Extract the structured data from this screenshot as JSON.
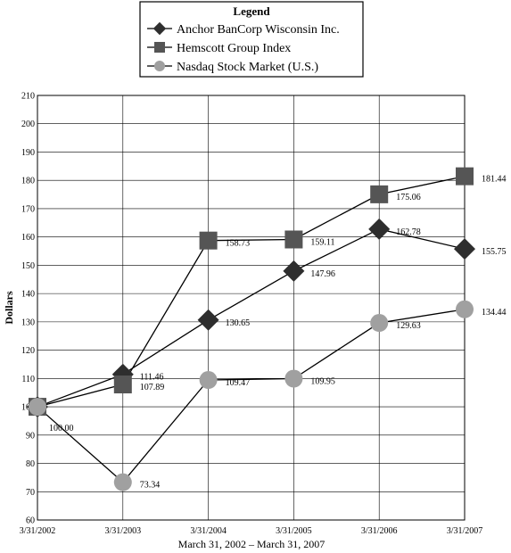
{
  "chart_data": {
    "type": "line",
    "legend_title": "Legend",
    "legend_position": "top-center",
    "x": [
      "3/31/2002",
      "3/31/2003",
      "3/31/2004",
      "3/31/2005",
      "3/31/2006",
      "3/31/2007"
    ],
    "xlabel": "March 31, 2002 – March 31, 2007",
    "ylabel": "Dollars",
    "ylim": [
      60,
      210
    ],
    "yticks": [
      60,
      70,
      80,
      90,
      100,
      110,
      120,
      130,
      140,
      150,
      160,
      170,
      180,
      190,
      200,
      210
    ],
    "grid": true,
    "series": [
      {
        "name": "Anchor BanCorp Wisconsin Inc.",
        "marker": "diamond",
        "color": "#2e2e2e",
        "values": [
          100.0,
          111.46,
          130.65,
          147.96,
          162.78,
          155.75
        ],
        "labels": [
          "",
          "111.46",
          "130.65",
          "147.96",
          "162.78",
          "155.75"
        ]
      },
      {
        "name": "Hemscott Group Index",
        "marker": "square",
        "color": "#555555",
        "values": [
          100.0,
          107.89,
          158.73,
          159.11,
          175.06,
          181.44
        ],
        "labels": [
          "",
          "107.89",
          "158.73",
          "159.11",
          "175.06",
          "181.44"
        ]
      },
      {
        "name": "Nasdaq Stock Market (U.S.)",
        "marker": "circle",
        "color": "#a0a0a0",
        "values": [
          100.0,
          73.34,
          109.47,
          109.95,
          129.63,
          134.44
        ],
        "labels": [
          "",
          "73.34",
          "109.47",
          "109.95",
          "129.63",
          "134.44"
        ]
      }
    ],
    "shared_label": "100.00"
  }
}
